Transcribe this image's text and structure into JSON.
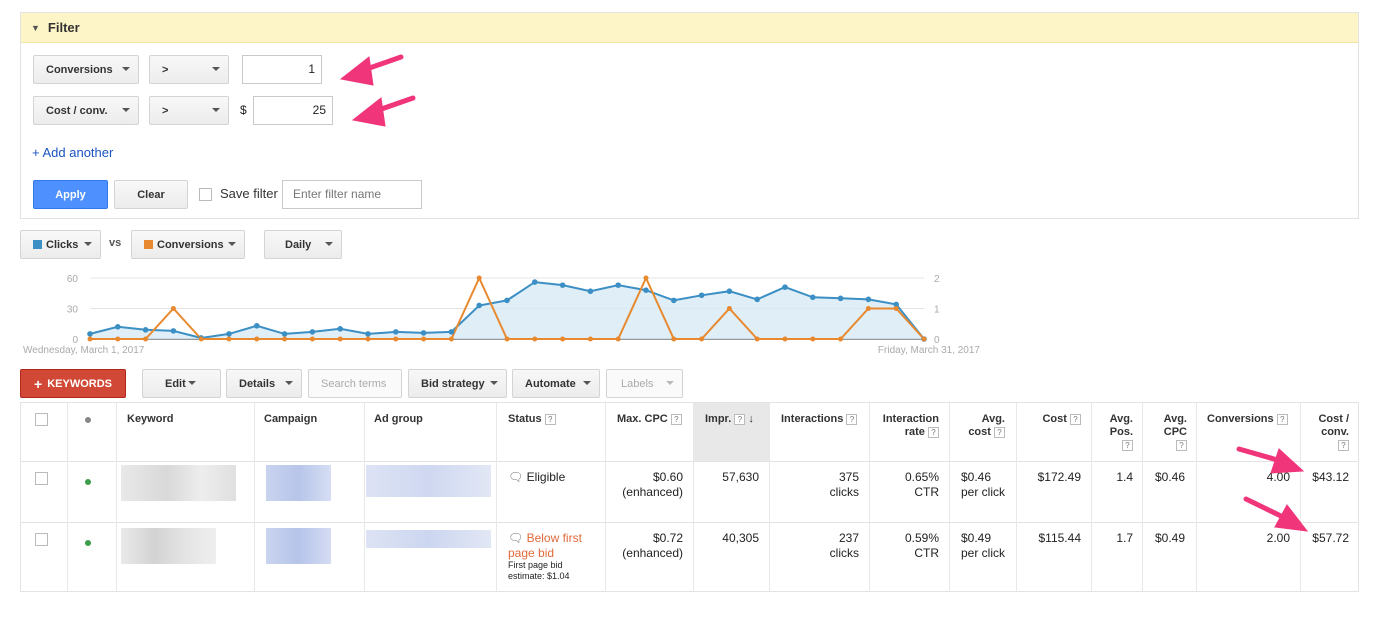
{
  "filter": {
    "header": "Filter",
    "rows": [
      {
        "field": "Conversions",
        "operator": ">",
        "prefix": "",
        "value": "1"
      },
      {
        "field": "Cost / conv.",
        "operator": ">",
        "prefix": "$",
        "value": "25"
      }
    ],
    "add_another": "+ Add another",
    "apply_label": "Apply",
    "clear_label": "Clear",
    "save_filter_label": "Save filter",
    "filter_name_placeholder": "Enter filter name"
  },
  "chart_controls": {
    "metric1": "Clicks",
    "vs": "vs",
    "metric2": "Conversions",
    "period": "Daily"
  },
  "chart_data": {
    "type": "line",
    "x": [
      1,
      2,
      3,
      4,
      5,
      6,
      7,
      8,
      9,
      10,
      11,
      12,
      13,
      14,
      15,
      16,
      17,
      18,
      19,
      20,
      21,
      22,
      23,
      24,
      25,
      26,
      27,
      28,
      29,
      30,
      31
    ],
    "start_label": "Wednesday, March 1, 2017",
    "end_label": "Friday, March 31, 2017",
    "left_ticks": [
      "60",
      "30",
      "0"
    ],
    "right_ticks": [
      "2",
      "1",
      "0"
    ],
    "ylim_left": [
      0,
      60
    ],
    "ylim_right": [
      0,
      2
    ],
    "grid": true,
    "colors": {
      "clicks": "#3b8fc4",
      "conversions": "#e8892f",
      "area": "#d7eaf5"
    },
    "series": [
      {
        "name": "Clicks",
        "axis": "left",
        "values": [
          5,
          12,
          9,
          8,
          1,
          5,
          13,
          5,
          7,
          10,
          5,
          7,
          6,
          7,
          33,
          38,
          56,
          53,
          47,
          53,
          48,
          38,
          43,
          47,
          39,
          51,
          41,
          40,
          39,
          34,
          0
        ]
      },
      {
        "name": "Conversions",
        "axis": "right",
        "values": [
          0,
          0,
          0,
          1,
          0,
          0,
          0,
          0,
          0,
          0,
          0,
          0,
          0,
          0,
          2,
          0,
          0,
          0,
          0,
          0,
          2,
          0,
          0,
          1,
          0,
          0,
          0,
          0,
          1,
          1,
          0
        ]
      }
    ]
  },
  "toolbar": {
    "keywords": "KEYWORDS",
    "edit": "Edit",
    "details": "Details",
    "search_terms": "Search terms",
    "bid_strategy": "Bid strategy",
    "automate": "Automate",
    "labels": "Labels"
  },
  "table": {
    "headers": {
      "keyword": "Keyword",
      "campaign": "Campaign",
      "ad_group": "Ad group",
      "status": "Status",
      "max_cpc": "Max. CPC",
      "impr": "Impr.",
      "interactions": "Interactions",
      "interaction_rate_1": "Interaction",
      "interaction_rate_2": "rate",
      "avg_cost_1": "Avg.",
      "avg_cost_2": "cost",
      "cost": "Cost",
      "avg_pos_1": "Avg.",
      "avg_pos_2": "Pos.",
      "avg_cpc_1": "Avg.",
      "avg_cpc_2": "CPC",
      "conversions": "Conversions",
      "cost_conv_1": "Cost /",
      "cost_conv_2": "conv.",
      "help": "?"
    },
    "rows": [
      {
        "status": "Eligible",
        "status_note_1": "",
        "status_note_2": "",
        "max_cpc": "$0.60",
        "max_cpc_note": "(enhanced)",
        "impr": "57,630",
        "interactions": "375",
        "interactions_unit": "clicks",
        "interaction_rate": "0.65%",
        "interaction_rate_unit": "CTR",
        "avg_cost": "$0.46",
        "avg_cost_unit": "per click",
        "cost": "$172.49",
        "avg_pos": "1.4",
        "avg_cpc": "$0.46",
        "conversions": "4.00",
        "cost_conv": "$43.12"
      },
      {
        "status": "Below first page bid",
        "status_line1": "Below first",
        "status_line2": "page bid",
        "status_note_1": "First page bid",
        "status_note_2": "estimate: $1.04",
        "max_cpc": "$0.72",
        "max_cpc_note": "(enhanced)",
        "impr": "40,305",
        "interactions": "237",
        "interactions_unit": "clicks",
        "interaction_rate": "0.59%",
        "interaction_rate_unit": "CTR",
        "avg_cost": "$0.49",
        "avg_cost_unit": "per click",
        "cost": "$115.44",
        "avg_pos": "1.7",
        "avg_cpc": "$0.49",
        "conversions": "2.00",
        "cost_conv": "$57.72"
      }
    ]
  },
  "colors": {
    "accent": "#4d90fe",
    "keyword_btn": "#d14836",
    "status_warning": "#e06a3b",
    "annotation_arrow": "#f0357a",
    "enabled_dot": "#3c9d4a"
  }
}
